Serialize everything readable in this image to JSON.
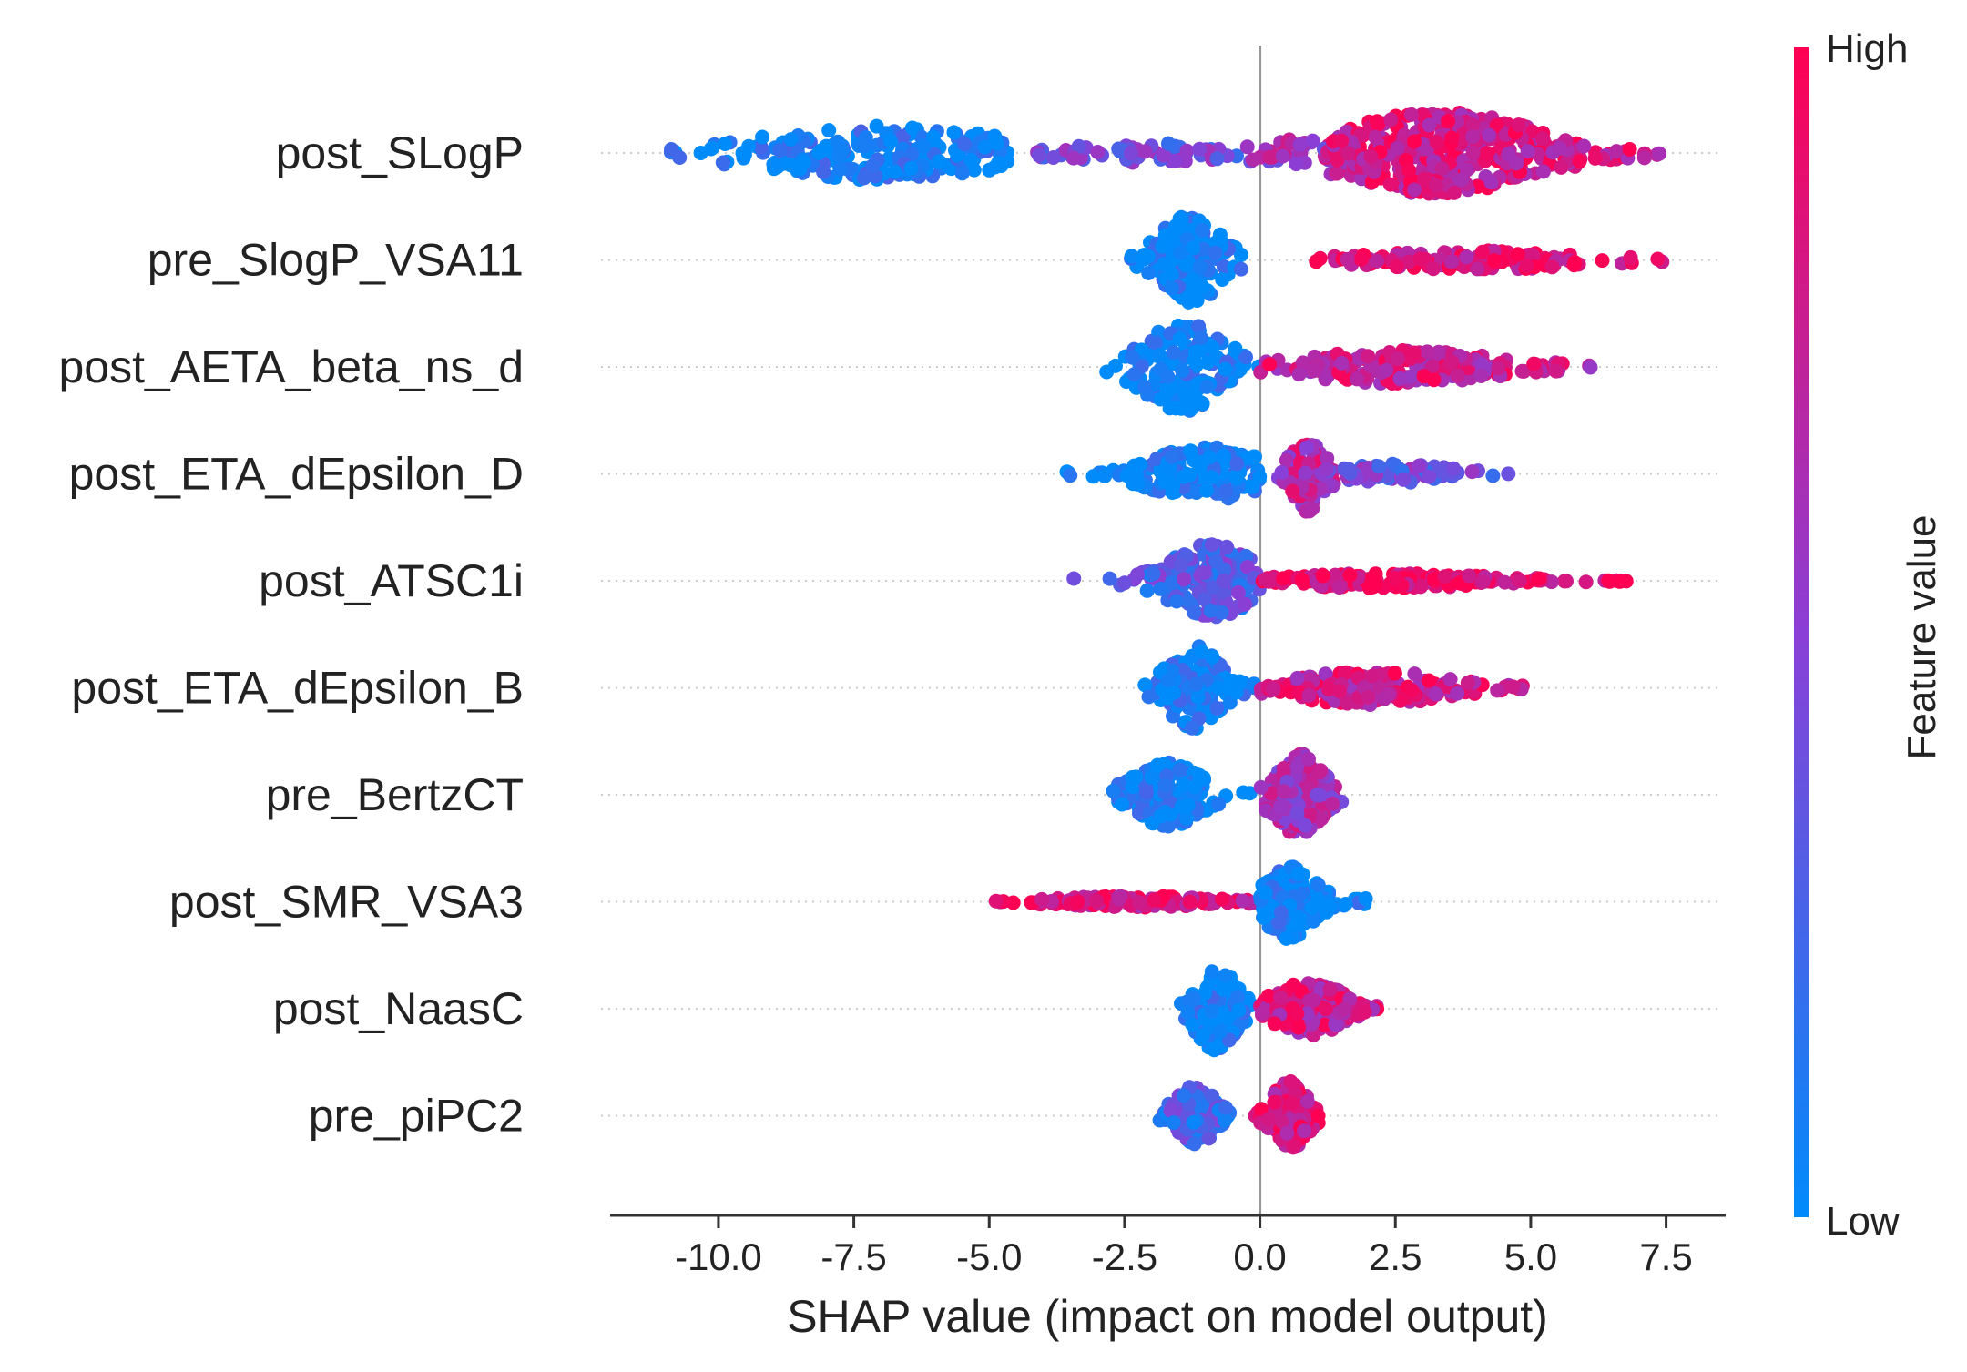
{
  "chart_data": {
    "type": "scatter",
    "subtype": "shap-beeswarm-summary",
    "xlabel": "SHAP value (impact on model output)",
    "xlim": [
      -12.0,
      8.6
    ],
    "x_ticks": [
      "-10.0",
      "-7.5",
      "-5.0",
      "-2.5",
      "0.0",
      "2.5",
      "5.0",
      "7.5"
    ],
    "x_tick_values": [
      -10.0,
      -7.5,
      -5.0,
      -2.5,
      0.0,
      2.5,
      5.0,
      7.5
    ],
    "zero_line": true,
    "colorbar": {
      "label": "Feature value",
      "high_label": "High",
      "low_label": "Low",
      "high_color": "#ff0052",
      "low_color": "#008bfb"
    },
    "features": [
      {
        "name": "post_SLogP",
        "clusters": [
          {
            "min": -11.0,
            "max": -4.5,
            "center": -7.0,
            "spread": 1.8,
            "value": 0.05,
            "count": 210,
            "height": 0.55
          },
          {
            "min": -4.5,
            "max": -0.3,
            "center": -2.0,
            "spread": 1.3,
            "value": 0.4,
            "count": 60,
            "height": 0.2
          },
          {
            "min": -0.5,
            "max": 1.5,
            "center": 0.6,
            "spread": 0.6,
            "value": 0.6,
            "count": 40,
            "height": 0.3
          },
          {
            "min": 1.3,
            "max": 7.4,
            "center": 3.3,
            "spread": 1.4,
            "value": 0.82,
            "count": 380,
            "height": 0.85
          }
        ]
      },
      {
        "name": "pre_SlogP_VSA11",
        "clusters": [
          {
            "min": -2.7,
            "max": 0.0,
            "center": -1.3,
            "spread": 0.45,
            "value": 0.02,
            "count": 150,
            "height": 0.9
          },
          {
            "min": 0.8,
            "max": 7.7,
            "center": 4.0,
            "spread": 1.6,
            "value": 0.85,
            "count": 150,
            "height": 0.2
          }
        ]
      },
      {
        "name": "post_AETA_beta_ns_d",
        "clusters": [
          {
            "min": -3.1,
            "max": 0.0,
            "center": -1.4,
            "spread": 0.6,
            "value": 0.03,
            "count": 170,
            "height": 0.9
          },
          {
            "min": 0.0,
            "max": 6.6,
            "center": 2.6,
            "spread": 1.4,
            "value": 0.78,
            "count": 170,
            "height": 0.35
          }
        ]
      },
      {
        "name": "post_ETA_dEpsilon_D",
        "clusters": [
          {
            "min": -3.6,
            "max": 0.0,
            "center": -1.0,
            "spread": 0.8,
            "value": 0.03,
            "count": 170,
            "height": 0.55
          },
          {
            "min": 0.3,
            "max": 1.4,
            "center": 0.9,
            "spread": 0.25,
            "value": 0.7,
            "count": 90,
            "height": 0.8
          },
          {
            "min": 1.2,
            "max": 4.7,
            "center": 2.4,
            "spread": 0.9,
            "value": 0.4,
            "count": 70,
            "height": 0.2
          }
        ]
      },
      {
        "name": "post_ATSC1i",
        "clusters": [
          {
            "min": -3.7,
            "max": 0.0,
            "center": -0.9,
            "spread": 0.6,
            "value": 0.3,
            "count": 170,
            "height": 0.75
          },
          {
            "min": 0.0,
            "max": 7.6,
            "center": 2.3,
            "spread": 1.6,
            "value": 0.92,
            "count": 170,
            "height": 0.15
          }
        ]
      },
      {
        "name": "post_ETA_dEpsilon_B",
        "clusters": [
          {
            "min": -2.2,
            "max": 0.0,
            "center": -1.2,
            "spread": 0.4,
            "value": 0.04,
            "count": 140,
            "height": 0.85
          },
          {
            "min": 0.0,
            "max": 5.0,
            "center": 2.0,
            "spread": 1.1,
            "value": 0.8,
            "count": 170,
            "height": 0.35
          }
        ]
      },
      {
        "name": "pre_BertzCT",
        "clusters": [
          {
            "min": -2.8,
            "max": 0.0,
            "center": -1.7,
            "spread": 0.5,
            "value": 0.03,
            "count": 150,
            "height": 0.65
          },
          {
            "min": 0.0,
            "max": 1.7,
            "center": 0.7,
            "spread": 0.35,
            "value": 0.6,
            "count": 150,
            "height": 0.85
          }
        ]
      },
      {
        "name": "post_SMR_VSA3",
        "clusters": [
          {
            "min": -5.6,
            "max": 0.0,
            "center": -2.3,
            "spread": 1.1,
            "value": 0.85,
            "count": 150,
            "height": 0.12
          },
          {
            "min": 0.0,
            "max": 2.0,
            "center": 0.5,
            "spread": 0.4,
            "value": 0.02,
            "count": 160,
            "height": 0.75
          }
        ]
      },
      {
        "name": "post_NaasC",
        "clusters": [
          {
            "min": -1.5,
            "max": 0.0,
            "center": -0.8,
            "spread": 0.3,
            "value": 0.04,
            "count": 130,
            "height": 0.85
          },
          {
            "min": 0.0,
            "max": 2.2,
            "center": 0.9,
            "spread": 0.5,
            "value": 0.78,
            "count": 170,
            "height": 0.55
          }
        ]
      },
      {
        "name": "pre_piPC2",
        "clusters": [
          {
            "min": -2.0,
            "max": -0.4,
            "center": -1.2,
            "spread": 0.3,
            "value": 0.25,
            "count": 120,
            "height": 0.6
          },
          {
            "min": -0.2,
            "max": 1.2,
            "center": 0.55,
            "spread": 0.25,
            "value": 0.85,
            "count": 170,
            "height": 0.7
          }
        ]
      }
    ]
  }
}
